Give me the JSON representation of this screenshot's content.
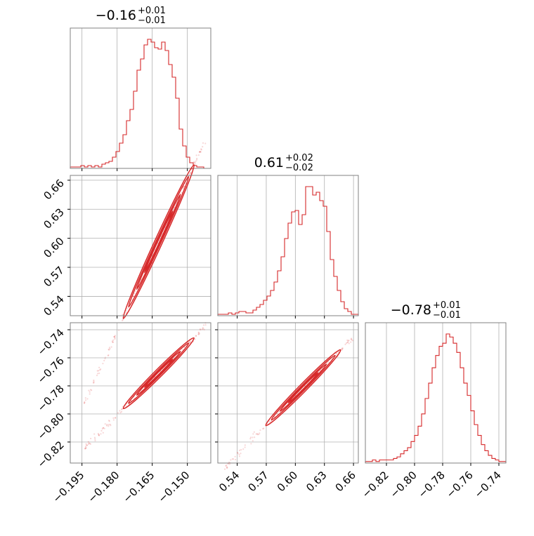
{
  "chart_data": {
    "type": "corner",
    "params": [
      {
        "title": {
          "base": "−0.16",
          "sup": "+0.01",
          "sub": "−0.01"
        },
        "range": [
          -0.2,
          -0.14
        ],
        "ticks": [
          {
            "value": -0.195,
            "label": "−0.195"
          },
          {
            "value": -0.18,
            "label": "−0.180"
          },
          {
            "value": -0.165,
            "label": "−0.165"
          },
          {
            "value": -0.15,
            "label": "−0.150"
          }
        ]
      },
      {
        "title": {
          "base": "0.61",
          "sup": "+0.02",
          "sub": "−0.02"
        },
        "range": [
          0.52,
          0.665
        ],
        "ticks": [
          {
            "value": 0.54,
            "label": "0.54"
          },
          {
            "value": 0.57,
            "label": "0.57"
          },
          {
            "value": 0.6,
            "label": "0.60"
          },
          {
            "value": 0.63,
            "label": "0.63"
          },
          {
            "value": 0.66,
            "label": "0.66"
          }
        ]
      },
      {
        "title": {
          "base": "−0.78",
          "sup": "+0.01",
          "sub": "−0.01"
        },
        "range": [
          -0.835,
          -0.735
        ],
        "ticks": [
          {
            "value": -0.82,
            "label": "−0.82"
          },
          {
            "value": -0.8,
            "label": "−0.80"
          },
          {
            "value": -0.78,
            "label": "−0.78"
          },
          {
            "value": -0.76,
            "label": "−0.76"
          },
          {
            "value": -0.74,
            "label": "−0.74"
          }
        ]
      }
    ],
    "histograms": [
      {
        "param": 0,
        "counts": [
          1,
          1,
          1,
          2,
          1,
          2,
          1,
          2,
          1,
          3,
          4,
          5,
          8,
          12,
          18,
          24,
          34,
          42,
          55,
          70,
          78,
          88,
          92,
          90,
          86,
          85,
          90,
          84,
          74,
          65,
          50,
          28,
          16,
          8,
          4,
          2,
          1,
          1,
          0,
          0
        ]
      },
      {
        "param": 1,
        "counts": [
          1,
          1,
          1,
          2,
          1,
          2,
          3,
          3,
          2,
          2,
          4,
          6,
          8,
          11,
          14,
          18,
          24,
          32,
          42,
          55,
          66,
          74,
          75,
          65,
          72,
          92,
          92,
          86,
          88,
          82,
          78,
          60,
          40,
          28,
          18,
          10,
          5,
          3,
          1,
          1
        ]
      },
      {
        "param": 2,
        "counts": [
          1,
          1,
          2,
          1,
          2,
          2,
          2,
          2,
          3,
          4,
          6,
          8,
          10,
          14,
          18,
          24,
          32,
          42,
          52,
          62,
          70,
          76,
          78,
          84,
          82,
          78,
          72,
          62,
          52,
          44,
          34,
          25,
          18,
          12,
          8,
          5,
          3,
          2,
          1,
          1
        ]
      }
    ],
    "pairs": [
      {
        "x": 0,
        "y": 1,
        "slope": 5.26,
        "intercept": 1.45,
        "x_range": [
          -0.194,
          -0.142
        ]
      },
      {
        "x": 0,
        "y": 2,
        "slope": 1.67,
        "intercept": -0.5,
        "x_range": [
          -0.194,
          -0.142
        ]
      },
      {
        "x": 1,
        "y": 2,
        "slope": 0.7,
        "intercept": -1.207,
        "x_range": [
          0.527,
          0.66
        ]
      }
    ],
    "grid": true,
    "color": "#d62728"
  }
}
